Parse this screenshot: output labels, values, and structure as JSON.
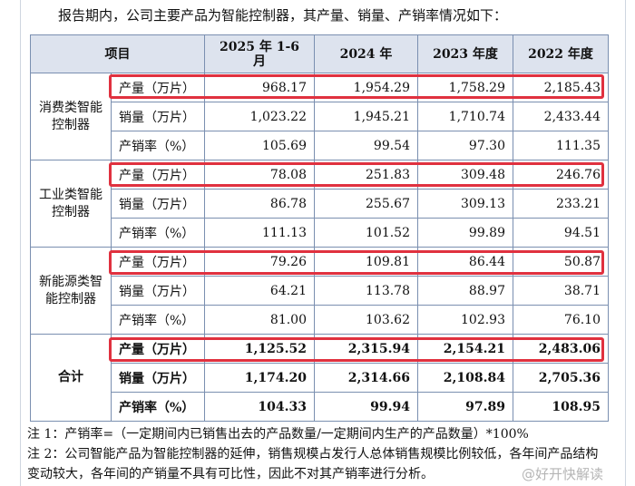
{
  "intro": "报告期内，公司主要产品为智能控制器，其产量、销量、产销率情况如下：",
  "headers": [
    "项目",
    "2025 年 1-6 月",
    "2024 年",
    "2023 年度",
    "2022 年度"
  ],
  "groups": [
    {
      "name": "消费类智能控制器",
      "rows": [
        {
          "label": "产量（万片）",
          "values": [
            "968.17",
            "1,954.29",
            "1,758.29",
            "2,185.43"
          ]
        },
        {
          "label": "销量（万片）",
          "values": [
            "1,023.22",
            "1,945.21",
            "1,710.74",
            "2,433.44"
          ]
        },
        {
          "label": "产销率（%）",
          "values": [
            "105.69",
            "99.54",
            "97.30",
            "111.35"
          ]
        }
      ]
    },
    {
      "name": "工业类智能控制器",
      "rows": [
        {
          "label": "产量（万片）",
          "values": [
            "78.08",
            "251.83",
            "309.48",
            "246.76"
          ]
        },
        {
          "label": "销量（万片）",
          "values": [
            "86.78",
            "255.67",
            "309.13",
            "233.21"
          ]
        },
        {
          "label": "产销率（%）",
          "values": [
            "111.13",
            "101.52",
            "99.89",
            "94.51"
          ]
        }
      ]
    },
    {
      "name": "新能源类智能控制器",
      "rows": [
        {
          "label": "产量（万片）",
          "values": [
            "79.26",
            "109.81",
            "86.44",
            "50.87"
          ]
        },
        {
          "label": "销量（万片）",
          "values": [
            "64.21",
            "113.78",
            "88.97",
            "38.71"
          ]
        },
        {
          "label": "产销率（%）",
          "values": [
            "81.00",
            "103.62",
            "102.93",
            "76.10"
          ]
        }
      ]
    },
    {
      "name": "合计",
      "rows": [
        {
          "label": "产量（万片）",
          "values": [
            "1,125.52",
            "2,315.94",
            "2,154.21",
            "2,483.06"
          ]
        },
        {
          "label": "销量（万片）",
          "values": [
            "1,174.20",
            "2,314.66",
            "2,108.84",
            "2,705.36"
          ]
        },
        {
          "label": "产销率（%）",
          "values": [
            "104.33",
            "99.94",
            "97.89",
            "108.95"
          ]
        }
      ]
    }
  ],
  "notes": [
    "注 1：产销率=（一定期间内已销售出去的产品数量/一定期间内生产的产品数量）*100%",
    "注 2：公司智能产品为智能控制器的延伸，销售规模占发行人总体销售规模比例较低，各年间产品结构变动较大，各年间的产销量不具有可比性，因此不对其产销率进行分析。"
  ],
  "watermark": "@好开快解读",
  "highlight_color": "#e0313f"
}
